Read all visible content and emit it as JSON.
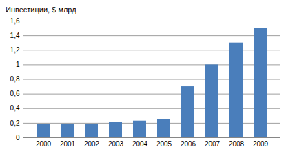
{
  "chart_data": {
    "type": "bar",
    "y_label": "Инвестиции, $ млрд",
    "categories": [
      "2000",
      "2001",
      "2002",
      "2003",
      "2004",
      "2005",
      "2006",
      "2007",
      "2008",
      "2009"
    ],
    "values": [
      0.18,
      0.19,
      0.19,
      0.21,
      0.23,
      0.25,
      0.7,
      1.0,
      1.3,
      1.5
    ],
    "color": "#4a7ebb",
    "ylim": [
      0,
      1.6
    ],
    "yticks": [
      0,
      {
        "value": 0.2,
        "label": "0,2"
      },
      {
        "value": 0.4,
        "label": "0,4"
      },
      {
        "value": 0.6,
        "label": "0,6"
      },
      {
        "value": 0.8,
        "label": "0,8"
      },
      1,
      {
        "value": 1.2,
        "label": "1,2"
      },
      {
        "value": 1.4,
        "label": "1,4"
      },
      {
        "value": 1.6,
        "label": "1,6"
      }
    ],
    "grid": true
  }
}
